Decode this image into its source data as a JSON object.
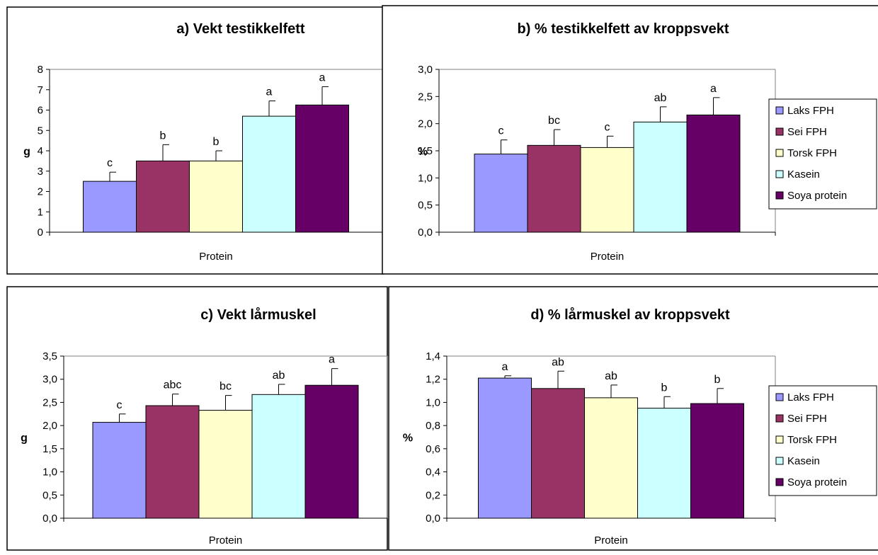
{
  "colors": {
    "Laks FPH": "#9999ff",
    "Sei FPH": "#993366",
    "Torsk FPH": "#ffffcc",
    "Kasein": "#ccffff",
    "Soya protein": "#660066"
  },
  "legend_entries": [
    "Laks FPH",
    "Sei FPH",
    "Torsk FPH",
    "Kasein",
    "Soya protein"
  ],
  "chart_data": [
    {
      "type": "bar",
      "title": "a) Vekt testikkelfett",
      "xlabel": "Protein",
      "ylabel": "g",
      "ylim": [
        0,
        8
      ],
      "yticks": [
        "0",
        "1",
        "2",
        "3",
        "4",
        "5",
        "6",
        "7",
        "8"
      ],
      "series": [
        {
          "name": "Laks FPH",
          "value": 2.5,
          "error": 0.45,
          "label": "c"
        },
        {
          "name": "Sei FPH",
          "value": 3.5,
          "error": 0.8,
          "label": "b"
        },
        {
          "name": "Torsk FPH",
          "value": 3.5,
          "error": 0.5,
          "label": "b"
        },
        {
          "name": "Kasein",
          "value": 5.7,
          "error": 0.75,
          "label": "a"
        },
        {
          "name": "Soya protein",
          "value": 6.25,
          "error": 0.9,
          "label": "a"
        }
      ]
    },
    {
      "type": "bar",
      "title": "b) % testikkelfett av kroppsvekt",
      "xlabel": "Protein",
      "ylabel": "%",
      "ylim": [
        0,
        3
      ],
      "yticks": [
        "0,0",
        "0,5",
        "1,0",
        "1,5",
        "2,0",
        "2,5",
        "3,0"
      ],
      "series": [
        {
          "name": "Laks FPH",
          "value": 1.44,
          "error": 0.26,
          "label": "c"
        },
        {
          "name": "Sei FPH",
          "value": 1.6,
          "error": 0.29,
          "label": "bc"
        },
        {
          "name": "Torsk FPH",
          "value": 1.56,
          "error": 0.21,
          "label": "c"
        },
        {
          "name": "Kasein",
          "value": 2.03,
          "error": 0.28,
          "label": "ab"
        },
        {
          "name": "Soya protein",
          "value": 2.16,
          "error": 0.32,
          "label": "a"
        }
      ]
    },
    {
      "type": "bar",
      "title": "c) Vekt lårmuskel",
      "xlabel": "Protein",
      "ylabel": "g",
      "ylim": [
        0,
        3.5
      ],
      "yticks": [
        "0,0",
        "0,5",
        "1,0",
        "1,5",
        "2,0",
        "2,5",
        "3,0",
        "3,5"
      ],
      "series": [
        {
          "name": "Laks FPH",
          "value": 2.07,
          "error": 0.18,
          "label": "c"
        },
        {
          "name": "Sei FPH",
          "value": 2.43,
          "error": 0.25,
          "label": "abc"
        },
        {
          "name": "Torsk FPH",
          "value": 2.33,
          "error": 0.32,
          "label": "bc"
        },
        {
          "name": "Kasein",
          "value": 2.67,
          "error": 0.22,
          "label": "ab"
        },
        {
          "name": "Soya protein",
          "value": 2.87,
          "error": 0.36,
          "label": "a"
        }
      ]
    },
    {
      "type": "bar",
      "title": "d) % lårmuskel av kroppsvekt",
      "xlabel": "Protein",
      "ylabel": "%",
      "ylim": [
        0,
        1.4
      ],
      "yticks": [
        "0,0",
        "0,2",
        "0,4",
        "0,6",
        "0,8",
        "1,0",
        "1,2",
        "1,4"
      ],
      "series": [
        {
          "name": "Laks FPH",
          "value": 1.21,
          "error": 0.02,
          "label": "a"
        },
        {
          "name": "Sei FPH",
          "value": 1.12,
          "error": 0.15,
          "label": "ab"
        },
        {
          "name": "Torsk FPH",
          "value": 1.04,
          "error": 0.11,
          "label": "ab"
        },
        {
          "name": "Kasein",
          "value": 0.95,
          "error": 0.1,
          "label": "b"
        },
        {
          "name": "Soya protein",
          "value": 0.99,
          "error": 0.13,
          "label": "b"
        }
      ]
    }
  ]
}
